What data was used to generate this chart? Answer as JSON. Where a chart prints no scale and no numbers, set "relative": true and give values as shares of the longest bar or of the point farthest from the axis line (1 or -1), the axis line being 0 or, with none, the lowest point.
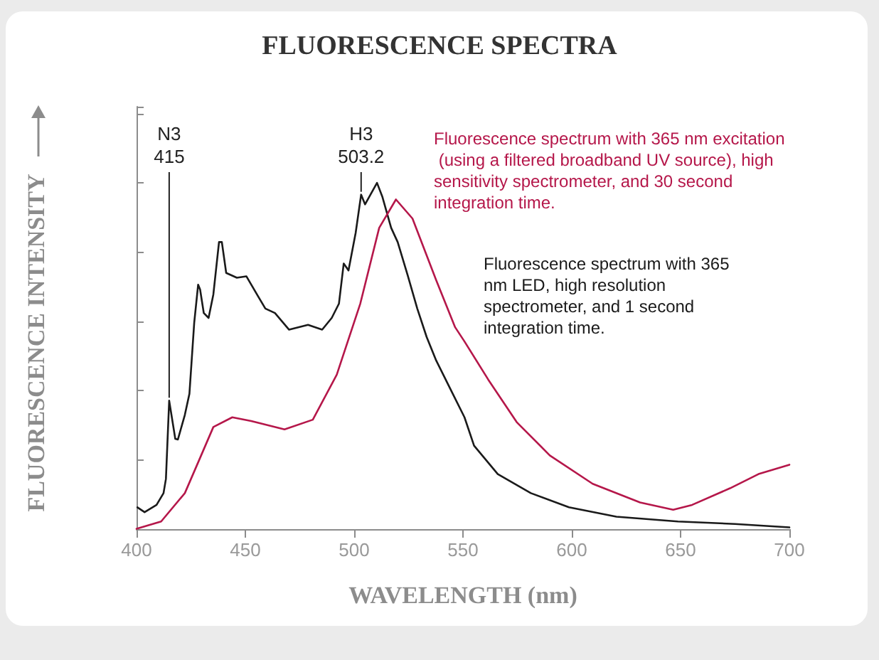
{
  "chart_data": {
    "type": "line",
    "title": "FLUORESCENCE SPECTRA",
    "xlabel": "WAVELENGTH (nm)",
    "ylabel": "FLUORESCENCE INTENSITY",
    "relative": true,
    "xlim": [
      400,
      700
    ],
    "xticks": [
      400,
      450,
      500,
      550,
      600,
      650,
      700
    ],
    "grid": false,
    "marker": "none",
    "line_style": "solid",
    "series": [
      {
        "name": "Fluorescence spectrum with 365 nm LED, high resolution spectrometer, and 1 second integration time.",
        "color": "#1a1a1a",
        "x": [
          400.4,
          403.7,
          409.2,
          412.4,
          413.5,
          415,
          417.8,
          419,
          422.2,
          424.3,
          426.5,
          428.3,
          429.2,
          430.9,
          433.1,
          435.3,
          437.9,
          439.2,
          441.2,
          446.1,
          450.5,
          455.9,
          459.2,
          463.6,
          470.1,
          478.8,
          485.3,
          489.7,
          493,
          495.2,
          497.4,
          500.7,
          503.2,
          505,
          510.5,
          513,
          517,
          520,
          524.6,
          529,
          533.3,
          537.7,
          544.2,
          550.7,
          555.1,
          566,
          581.2,
          598.7,
          620.5,
          648.8,
          675,
          700
        ],
        "values": [
          0.063,
          0.049,
          0.07,
          0.104,
          0.145,
          0.371,
          0.261,
          0.259,
          0.33,
          0.391,
          0.596,
          0.706,
          0.692,
          0.624,
          0.61,
          0.678,
          0.829,
          0.829,
          0.74,
          0.726,
          0.73,
          0.672,
          0.637,
          0.624,
          0.576,
          0.59,
          0.576,
          0.61,
          0.651,
          0.767,
          0.747,
          0.856,
          0.966,
          0.938,
          1,
          0.959,
          0.87,
          0.829,
          0.733,
          0.637,
          0.555,
          0.487,
          0.405,
          0.323,
          0.241,
          0.159,
          0.104,
          0.063,
          0.036,
          0.022,
          0.015,
          0.005
        ]
      },
      {
        "name": "Fluorescence spectrum with 365 nm excitation (using a filtered broadband UV source), high sensitivity spectrometer, and 30 second integration time.",
        "color": "#b5174a",
        "x": [
          400,
          411.3,
          422.2,
          428.8,
          435.3,
          444,
          452.7,
          468,
          481,
          492,
          502.8,
          511.5,
          519.2,
          526.8,
          537.7,
          546.4,
          550.7,
          561.6,
          574.7,
          589.9,
          609.6,
          631.4,
          646.6,
          655.3,
          672.7,
          685.8,
          700
        ],
        "values": [
          0.001,
          0.022,
          0.104,
          0.2,
          0.295,
          0.323,
          0.312,
          0.288,
          0.316,
          0.446,
          0.651,
          0.87,
          0.952,
          0.897,
          0.719,
          0.583,
          0.542,
          0.432,
          0.309,
          0.213,
          0.131,
          0.077,
          0.056,
          0.07,
          0.118,
          0.159,
          0.186
        ]
      }
    ],
    "annotations": [
      {
        "text": "N3\n415",
        "x": 415,
        "y": 0.371
      },
      {
        "text": "H3\n503.2",
        "x": 503.2,
        "y": 0.966
      }
    ]
  }
}
